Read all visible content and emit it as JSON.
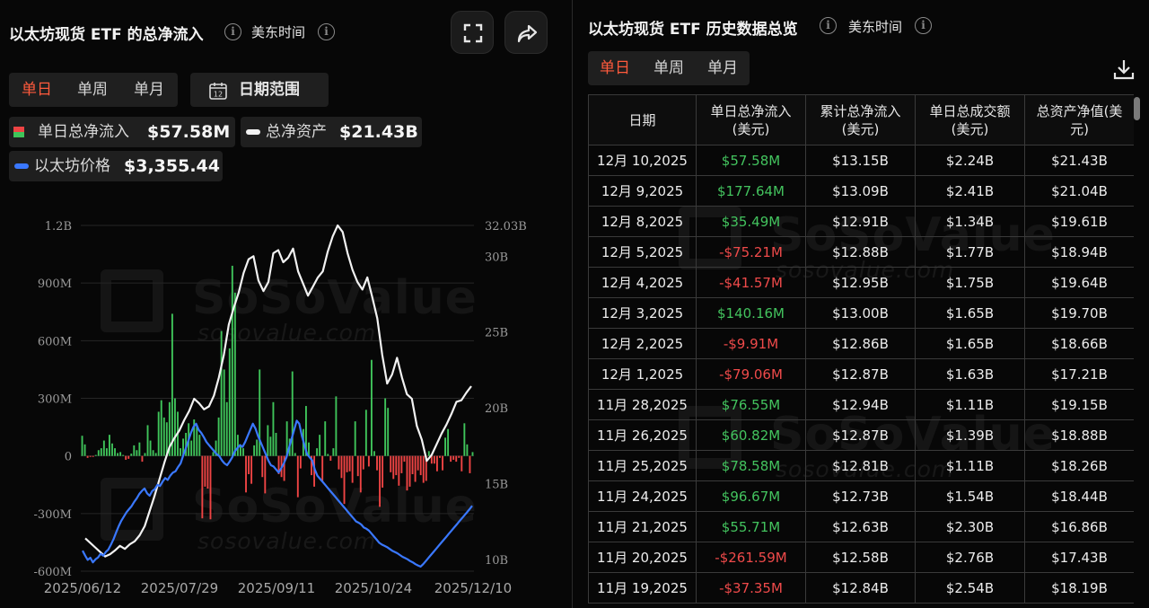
{
  "left": {
    "title": "以太坊现货 ETF 的总净流入",
    "timezone": "美东时间",
    "tabs": [
      "单日",
      "单周",
      "单月"
    ],
    "active_tab": "单日",
    "date_range_label": "日期范围",
    "calendar_day": "12",
    "legend": {
      "net_inflow_label": "单日总净流入",
      "net_inflow_value": "$57.58M",
      "net_assets_label": "总净资产",
      "net_assets_value": "$21.43B",
      "eth_price_label": "以太坊价格",
      "eth_price_value": "$3,355.44"
    },
    "watermark": {
      "brand": "SoSoValue",
      "url": "sosovalue.com"
    }
  },
  "chart_data": {
    "type": "bar",
    "x_tick_labels": [
      "2025/06/12",
      "2025/07/29",
      "2025/09/11",
      "2025/10/24",
      "2025/12/10"
    ],
    "y_left_ticks": [
      "1.2B",
      "900M",
      "600M",
      "300M",
      "0",
      "-300M",
      "-600M"
    ],
    "y_left_range": [
      -600,
      1200
    ],
    "y_left_unit": "M",
    "y_right_ticks": [
      "32.03B",
      "30B",
      "25B",
      "20B",
      "15B",
      "10B"
    ],
    "y_right_range": [
      10,
      32.03
    ],
    "y_right_unit": "B",
    "colors": {
      "inflow": "#3fc45a",
      "outflow": "#ef4444",
      "net_assets": "#f2f2f2",
      "eth_price": "#3a78ff"
    },
    "series": [
      {
        "name": "单日总净流入",
        "type": "bar",
        "values": [
          105,
          60,
          -10,
          -5,
          -5,
          5,
          30,
          40,
          80,
          40,
          110,
          65,
          40,
          15,
          20,
          5,
          -20,
          -15,
          12,
          55,
          30,
          70,
          -30,
          15,
          160,
          80,
          30,
          15,
          230,
          290,
          200,
          175,
          280,
          740,
          300,
          230,
          40,
          90,
          120,
          170,
          80,
          190,
          160,
          110,
          -325,
          -160,
          -170,
          -330,
          20,
          80,
          200,
          650,
          450,
          280,
          560,
          990,
          850,
          110,
          60,
          40,
          -190,
          -95,
          -145,
          55,
          85,
          450,
          -110,
          -195,
          160,
          100,
          280,
          120,
          -95,
          -110,
          -130,
          180,
          90,
          440,
          15,
          -215,
          -65,
          140,
          260,
          70,
          -100,
          -160,
          40,
          110,
          -135,
          180,
          10,
          -25,
          40,
          310,
          -70,
          -115,
          -250,
          -85,
          -80,
          -140,
          180,
          -105,
          -190,
          -70,
          240,
          -55,
          500,
          25,
          -75,
          -265,
          -165,
          300,
          250,
          -85,
          -120,
          -100,
          -155,
          -90,
          -30,
          -180,
          -160,
          -95,
          -135,
          -75,
          -100,
          -140,
          -130,
          25,
          -40,
          -40,
          -80,
          -10,
          -75,
          95,
          140,
          -30,
          -20,
          -30,
          -10,
          -80,
          170,
          60,
          -90,
          20
        ]
      },
      {
        "name": "总净资产",
        "type": "line",
        "unit": "B",
        "values": [
          11.4,
          11.1,
          10.8,
          10.5,
          10.2,
          10.35,
          10.6,
          10.9,
          10.7,
          11.0,
          11.2,
          11.6,
          12.2,
          13.2,
          14.2,
          15.3,
          16.4,
          17.4,
          18.0,
          18.5,
          19.2,
          19.8,
          20.6,
          20.3,
          19.9,
          20.1,
          20.8,
          22.0,
          23.5,
          25.5,
          26.6,
          27.6,
          28.9,
          29.8,
          30.0,
          28.4,
          27.7,
          28.3,
          30.2,
          30.4,
          29.6,
          29.9,
          30.5,
          29.0,
          28.2,
          27.4,
          28.0,
          28.6,
          29.0,
          30.3,
          31.3,
          32.03,
          31.6,
          30.2,
          29.1,
          28.3,
          27.8,
          28.6,
          27.3,
          25.9,
          23.5,
          21.6,
          22.2,
          23.3,
          22.0,
          20.9,
          20.6,
          18.8,
          17.9,
          16.5,
          16.9,
          17.6,
          18.3,
          18.9,
          19.6,
          20.4,
          20.5,
          21.0,
          21.43
        ]
      },
      {
        "name": "以太坊价格",
        "type": "line",
        "unit": "USD",
        "values": [
          2620,
          2540,
          2470,
          2505,
          2430,
          2480,
          2510,
          2570,
          2540,
          2600,
          2640,
          2720,
          2810,
          2920,
          3020,
          3110,
          3180,
          3250,
          3300,
          3350,
          3420,
          3480,
          3550,
          3600,
          3640,
          3560,
          3520,
          3600,
          3630,
          3700,
          3680,
          3750,
          3810,
          3780,
          3850,
          3900,
          3920,
          3990,
          4050,
          4180,
          4300,
          4420,
          4550,
          4650,
          4700,
          4600,
          4550,
          4480,
          4400,
          4350,
          4300,
          4250,
          4200,
          4170,
          4100,
          4050,
          4020,
          4080,
          4150,
          4250,
          4300,
          4350,
          4320,
          4400,
          4500,
          4600,
          4700,
          4620,
          4500,
          4400,
          4300,
          4200,
          4100,
          4020,
          4000,
          3950,
          3900,
          3970,
          4050,
          4150,
          4300,
          4450,
          4600,
          4750,
          4700,
          4500,
          4350,
          4200,
          4150,
          4100,
          3950,
          3850,
          3800,
          3750,
          3700,
          3650,
          3600,
          3550,
          3500,
          3450,
          3400,
          3350,
          3300,
          3250,
          3200,
          3150,
          3100,
          3080,
          3050,
          3000,
          2980,
          2950,
          2900,
          2850,
          2800,
          2750,
          2720,
          2700,
          2680,
          2650,
          2620,
          2600,
          2580,
          2550,
          2520,
          2500,
          2480,
          2450,
          2430,
          2400,
          2380,
          2360,
          2400,
          2450,
          2500,
          2550,
          2600,
          2650,
          2700,
          2750,
          2800,
          2850,
          2900,
          2950,
          3000,
          3050,
          3100,
          3150,
          3200,
          3250,
          3300,
          3355.44
        ]
      }
    ]
  },
  "right": {
    "title": "以太坊现货 ETF 历史数据总览",
    "timezone": "美东时间",
    "tabs": [
      "单日",
      "单周",
      "单月"
    ],
    "active_tab": "单日",
    "columns": [
      "日期",
      "单日总净流入(美元)",
      "累计总净流入(美元)",
      "单日总成交额(美元)",
      "总资产净值(美元)"
    ],
    "rows": [
      [
        "12月 10,2025",
        "$57.58M",
        "$13.15B",
        "$2.24B",
        "$21.43B"
      ],
      [
        "12月 9,2025",
        "$177.64M",
        "$13.09B",
        "$2.41B",
        "$21.04B"
      ],
      [
        "12月 8,2025",
        "$35.49M",
        "$12.91B",
        "$1.34B",
        "$19.61B"
      ],
      [
        "12月 5,2025",
        "-$75.21M",
        "$12.88B",
        "$1.77B",
        "$18.94B"
      ],
      [
        "12月 4,2025",
        "-$41.57M",
        "$12.95B",
        "$1.75B",
        "$19.64B"
      ],
      [
        "12月 3,2025",
        "$140.16M",
        "$13.00B",
        "$1.65B",
        "$19.70B"
      ],
      [
        "12月 2,2025",
        "-$9.91M",
        "$12.86B",
        "$1.65B",
        "$18.66B"
      ],
      [
        "12月 1,2025",
        "-$79.06M",
        "$12.87B",
        "$1.63B",
        "$17.21B"
      ],
      [
        "11月 28,2025",
        "$76.55M",
        "$12.94B",
        "$1.11B",
        "$19.15B"
      ],
      [
        "11月 26,2025",
        "$60.82M",
        "$12.87B",
        "$1.39B",
        "$18.88B"
      ],
      [
        "11月 25,2025",
        "$78.58M",
        "$12.81B",
        "$1.11B",
        "$18.26B"
      ],
      [
        "11月 24,2025",
        "$96.67M",
        "$12.73B",
        "$1.54B",
        "$18.44B"
      ],
      [
        "11月 21,2025",
        "$55.71M",
        "$12.63B",
        "$2.30B",
        "$16.86B"
      ],
      [
        "11月 20,2025",
        "-$261.59M",
        "$12.58B",
        "$2.76B",
        "$17.43B"
      ],
      [
        "11月 19,2025",
        "-$37.35M",
        "$12.84B",
        "$2.54B",
        "$18.19B"
      ]
    ]
  }
}
